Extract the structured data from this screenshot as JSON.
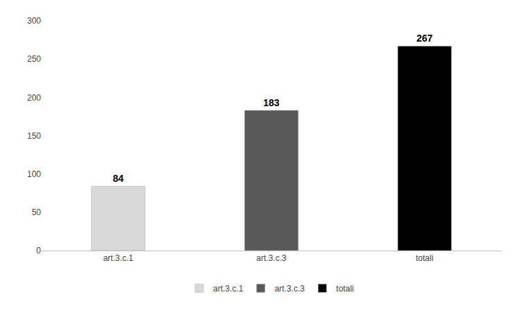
{
  "chart_data": {
    "type": "bar",
    "categories": [
      "art.3.c.1",
      "art.3.c.3",
      "totali"
    ],
    "values": [
      84,
      183,
      267
    ],
    "colors": [
      "#d9d9d9",
      "#595959",
      "#000000"
    ],
    "ylim": [
      0,
      300
    ],
    "yticks": [
      0,
      50,
      100,
      150,
      200,
      250,
      300
    ],
    "grid": false,
    "data_labels": true,
    "legend": "bottom"
  }
}
